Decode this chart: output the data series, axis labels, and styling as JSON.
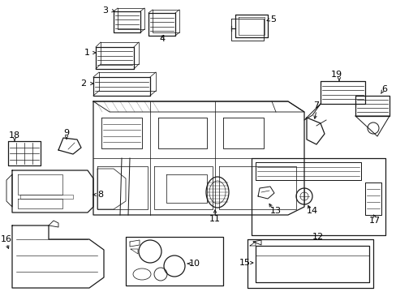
{
  "bg_color": "#ffffff",
  "line_color": "#1a1a1a",
  "label_color": "#000000",
  "image_b64": ""
}
